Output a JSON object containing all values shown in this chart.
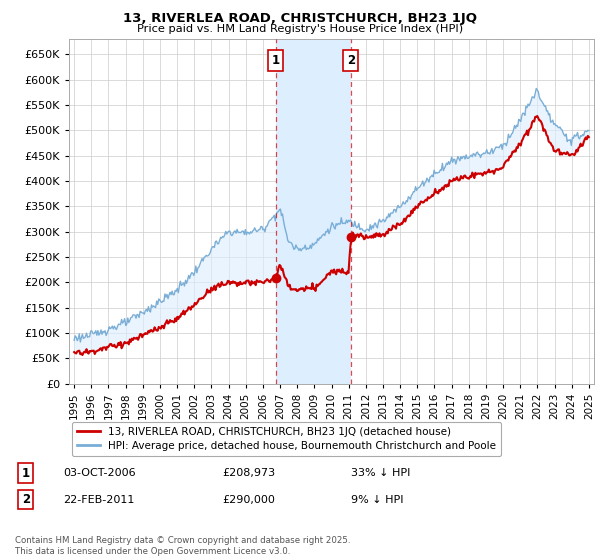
{
  "title": "13, RIVERLEA ROAD, CHRISTCHURCH, BH23 1JQ",
  "subtitle": "Price paid vs. HM Land Registry's House Price Index (HPI)",
  "legend_label_red": "13, RIVERLEA ROAD, CHRISTCHURCH, BH23 1JQ (detached house)",
  "legend_label_blue": "HPI: Average price, detached house, Bournemouth Christchurch and Poole",
  "transaction1_date": "03-OCT-2006",
  "transaction1_price": "£208,973",
  "transaction1_hpi": "33% ↓ HPI",
  "transaction2_date": "22-FEB-2011",
  "transaction2_price": "£290,000",
  "transaction2_hpi": "9% ↓ HPI",
  "footer": "Contains HM Land Registry data © Crown copyright and database right 2025.\nThis data is licensed under the Open Government Licence v3.0.",
  "ylim": [
    0,
    680000
  ],
  "yticks": [
    0,
    50000,
    100000,
    150000,
    200000,
    250000,
    300000,
    350000,
    400000,
    450000,
    500000,
    550000,
    600000,
    650000
  ],
  "ytick_labels": [
    "£0",
    "£50K",
    "£100K",
    "£150K",
    "£200K",
    "£250K",
    "£300K",
    "£350K",
    "£400K",
    "£450K",
    "£500K",
    "£550K",
    "£600K",
    "£650K"
  ],
  "red_color": "#cc0000",
  "blue_color": "#7aaed6",
  "shade_color": "#ddeeff",
  "transaction1_x": 2006.75,
  "transaction2_x": 2011.13,
  "background_color": "#ffffff",
  "grid_color": "#cccccc",
  "hpi_keypoints_x": [
    1995,
    1996,
    1997,
    1998,
    1999,
    2000,
    2001,
    2002,
    2003,
    2004,
    2005,
    2006,
    2007,
    2007.5,
    2008,
    2009,
    2010,
    2011,
    2012,
    2013,
    2014,
    2015,
    2016,
    2017,
    2018,
    2019,
    2020,
    2021,
    2022,
    2022.5,
    2023,
    2024,
    2025
  ],
  "hpi_keypoints_y": [
    90000,
    95000,
    108000,
    120000,
    140000,
    162000,
    185000,
    220000,
    265000,
    300000,
    298000,
    305000,
    345000,
    280000,
    265000,
    275000,
    310000,
    320000,
    305000,
    320000,
    350000,
    385000,
    415000,
    440000,
    450000,
    455000,
    470000,
    520000,
    580000,
    540000,
    510000,
    480000,
    500000
  ],
  "red_keypoints_x": [
    1995,
    1996,
    1997,
    1998,
    1999,
    2000,
    2001,
    2002,
    2003,
    2004,
    2005,
    2006,
    2006.75,
    2007,
    2007.5,
    2008,
    2009,
    2010,
    2011.0,
    2011.13,
    2011.5,
    2012,
    2013,
    2014,
    2015,
    2016,
    2017,
    2018,
    2019,
    2020,
    2021,
    2022,
    2022.5,
    2023,
    2024,
    2025
  ],
  "red_keypoints_y": [
    60000,
    63000,
    72000,
    80000,
    95000,
    110000,
    128000,
    155000,
    188000,
    200000,
    198000,
    200000,
    208973,
    235000,
    190000,
    185000,
    188000,
    220000,
    225000,
    290000,
    295000,
    290000,
    295000,
    315000,
    350000,
    375000,
    400000,
    410000,
    415000,
    428000,
    475000,
    530000,
    495000,
    460000,
    450000,
    490000
  ]
}
